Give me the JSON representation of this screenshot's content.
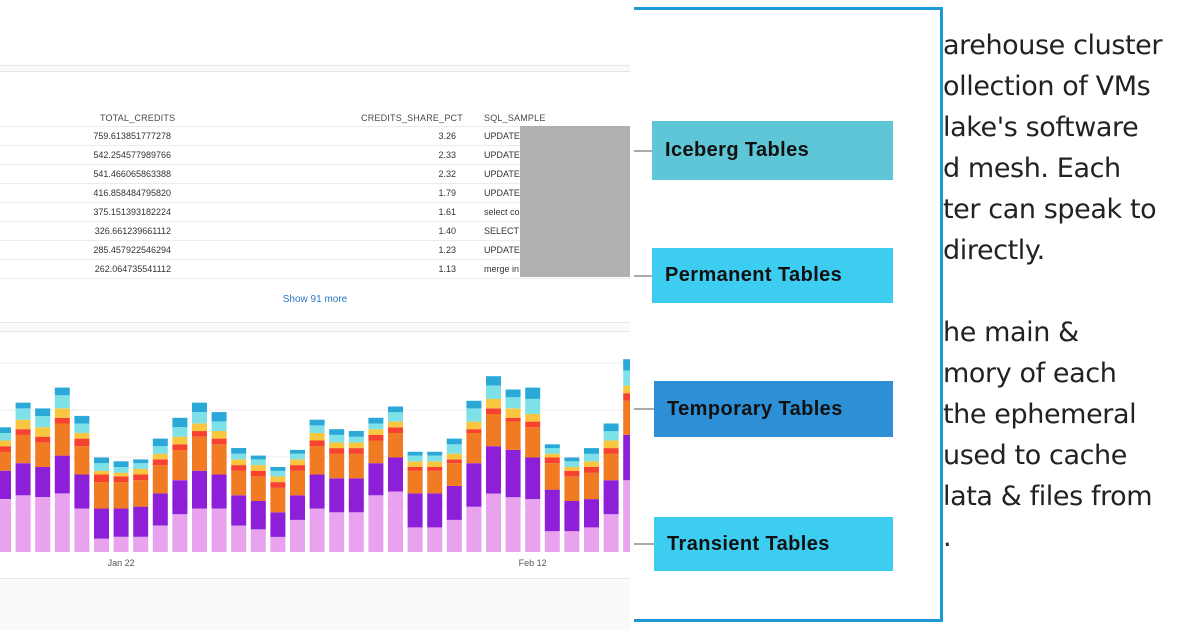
{
  "results": {
    "columns": [
      "TOTAL_CREDITS",
      "CREDITS_SHARE_PCT",
      "SQL_SAMPLE"
    ],
    "rows": [
      {
        "total_credits": "759.613851777278",
        "credits_share_pct": "3.26",
        "sql_sample": "UPDATE"
      },
      {
        "total_credits": "542.254577989766",
        "credits_share_pct": "2.33",
        "sql_sample": "UPDATE"
      },
      {
        "total_credits": "541.466065863388",
        "credits_share_pct": "2.32",
        "sql_sample": "UPDATE"
      },
      {
        "total_credits": "416.858484795820",
        "credits_share_pct": "1.79",
        "sql_sample": "UPDATE"
      },
      {
        "total_credits": "375.151393182224",
        "credits_share_pct": "1.61",
        "sql_sample": "select co"
      },
      {
        "total_credits": "326.661239661112",
        "credits_share_pct": "1.40",
        "sql_sample": "SELECT"
      },
      {
        "total_credits": "285.457922546294",
        "credits_share_pct": "1.23",
        "sql_sample": "UPDATE"
      },
      {
        "total_credits": "262.064735541112",
        "credits_share_pct": "1.13",
        "sql_sample": "merge in"
      }
    ],
    "show_more": "Show 91 more"
  },
  "chart_data": {
    "type": "bar",
    "stacked": true,
    "title": "",
    "xlabel": "",
    "ylabel": "",
    "tick_labels": [
      "Jan 22",
      "Feb 12"
    ],
    "tick_indices": [
      6,
      27
    ],
    "ylim": [
      0,
      10
    ],
    "series_colors": [
      "#e8a2ee",
      "#8e1fd9",
      "#f07b22",
      "#f6422f",
      "#f9c63f",
      "#7fe1e8",
      "#2aa8d8"
    ],
    "bars": [
      [
        2.8,
        1.5,
        1.0,
        0.3,
        0.3,
        0.4,
        0.3
      ],
      [
        3.0,
        1.7,
        1.5,
        0.3,
        0.5,
        0.6,
        0.3
      ],
      [
        2.9,
        1.6,
        1.3,
        0.3,
        0.5,
        0.6,
        0.4
      ],
      [
        3.1,
        2.0,
        1.7,
        0.3,
        0.5,
        0.7,
        0.4
      ],
      [
        2.3,
        1.8,
        1.5,
        0.4,
        0.3,
        0.5,
        0.4
      ],
      [
        0.7,
        1.6,
        1.4,
        0.4,
        0.2,
        0.4,
        0.3
      ],
      [
        0.8,
        1.5,
        1.4,
        0.3,
        0.2,
        0.3,
        0.3
      ],
      [
        0.8,
        1.6,
        1.4,
        0.3,
        0.3,
        0.3,
        0.2
      ],
      [
        1.4,
        1.7,
        1.5,
        0.3,
        0.3,
        0.4,
        0.4
      ],
      [
        2.0,
        1.8,
        1.6,
        0.3,
        0.4,
        0.5,
        0.5
      ],
      [
        2.3,
        2.0,
        1.8,
        0.3,
        0.4,
        0.6,
        0.5
      ],
      [
        2.3,
        1.8,
        1.6,
        0.3,
        0.4,
        0.5,
        0.5
      ],
      [
        1.4,
        1.6,
        1.3,
        0.3,
        0.3,
        0.3,
        0.3
      ],
      [
        1.2,
        1.5,
        1.3,
        0.3,
        0.3,
        0.3,
        0.2
      ],
      [
        0.8,
        1.3,
        1.3,
        0.3,
        0.3,
        0.3,
        0.2
      ],
      [
        1.7,
        1.3,
        1.3,
        0.3,
        0.3,
        0.3,
        0.2
      ],
      [
        2.3,
        1.8,
        1.5,
        0.3,
        0.4,
        0.4,
        0.3
      ],
      [
        2.1,
        1.8,
        1.3,
        0.3,
        0.3,
        0.4,
        0.3
      ],
      [
        2.1,
        1.8,
        1.3,
        0.3,
        0.3,
        0.3,
        0.3
      ],
      [
        3.0,
        1.7,
        1.2,
        0.3,
        0.3,
        0.3,
        0.3
      ],
      [
        3.2,
        1.8,
        1.3,
        0.3,
        0.3,
        0.5,
        0.3
      ],
      [
        1.3,
        1.8,
        1.2,
        0.2,
        0.3,
        0.3,
        0.2
      ],
      [
        1.3,
        1.8,
        1.2,
        0.2,
        0.3,
        0.3,
        0.2
      ],
      [
        1.7,
        1.8,
        1.2,
        0.2,
        0.3,
        0.5,
        0.3
      ],
      [
        2.4,
        2.3,
        1.6,
        0.2,
        0.4,
        0.7,
        0.4
      ],
      [
        3.1,
        2.5,
        1.7,
        0.3,
        0.5,
        0.7,
        0.5
      ],
      [
        2.9,
        2.5,
        1.5,
        0.2,
        0.5,
        0.6,
        0.4
      ],
      [
        2.8,
        2.2,
        1.6,
        0.3,
        0.4,
        0.8,
        0.6
      ],
      [
        1.1,
        2.2,
        1.4,
        0.3,
        0.2,
        0.3,
        0.2
      ],
      [
        1.1,
        1.6,
        1.3,
        0.3,
        0.2,
        0.3,
        0.2
      ],
      [
        1.3,
        1.5,
        1.4,
        0.3,
        0.3,
        0.4,
        0.3
      ],
      [
        2.0,
        1.8,
        1.4,
        0.3,
        0.4,
        0.5,
        0.4
      ],
      [
        3.8,
        2.4,
        1.8,
        0.4,
        0.4,
        0.8,
        0.6
      ],
      [
        3.0,
        2.8,
        1.6,
        0.4,
        0.4,
        0.6,
        0.4
      ],
      [
        2.6,
        1.9,
        1.5,
        0.3,
        0.3,
        0.5,
        0.3
      ],
      [
        2.8,
        1.5,
        1.4,
        0.3,
        0.3,
        0.4,
        0.3
      ],
      [
        1.6,
        1.1,
        0.8,
        0.2,
        0.2,
        0.3,
        0.2
      ]
    ]
  },
  "diagram": {
    "boxes": [
      {
        "label": "Iceberg Tables",
        "color": "#5ec6d6"
      },
      {
        "label": "Permanent Tables",
        "color": "#3ccdf0"
      },
      {
        "label": "Temporary Tables",
        "color": "#2d8fd5"
      },
      {
        "label": "Transient Tables",
        "color": "#3ccdf0"
      }
    ],
    "frame_color": "#1d9ad6"
  },
  "notes": {
    "lines": [
      "arehouse cluster",
      "ollection of VMs",
      "lake's software",
      "d mesh. Each",
      "ter can speak to",
      " directly.",
      "",
      "he main &",
      "mory of each",
      "the ephemeral",
      "used to cache",
      "lata & files from",
      "."
    ]
  }
}
